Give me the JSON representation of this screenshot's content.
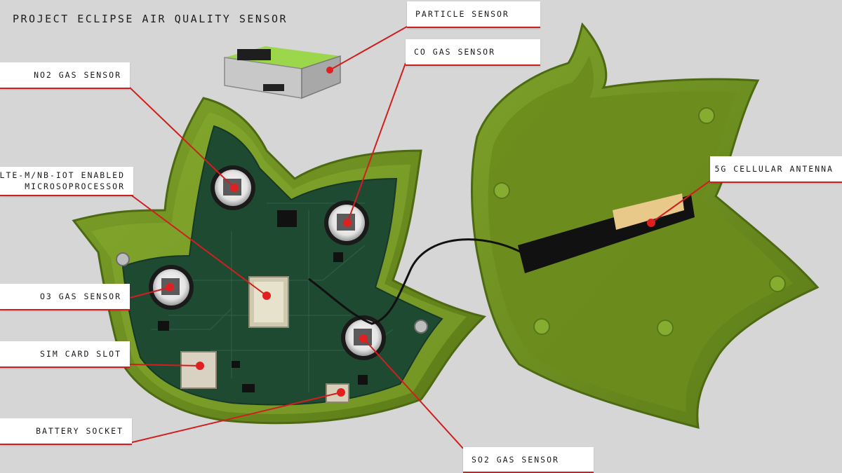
{
  "title": "PROJECT ECLIPSE AIR QUALITY SENSOR",
  "labels": {
    "particle": "PARTICLE SENSOR",
    "co": "CO GAS SENSOR",
    "no2": "NO2 GAS SENSOR",
    "lte_line1": "LTE-M/NB-IOT ENABLED",
    "lte_line2": "MICROSOPROCESSOR",
    "antenna": "5G CELLULAR ANTENNA",
    "o3": "O3 GAS SENSOR",
    "sim": "SIM CARD SLOT",
    "battery": "BATTERY SOCKET",
    "so2": "SO2 GAS SENSOR"
  },
  "colors": {
    "background": "#d6d6d6",
    "case_green": "#6f8f1e",
    "pcb_green": "#1f4a32",
    "leader_red": "#cf1f1f"
  }
}
